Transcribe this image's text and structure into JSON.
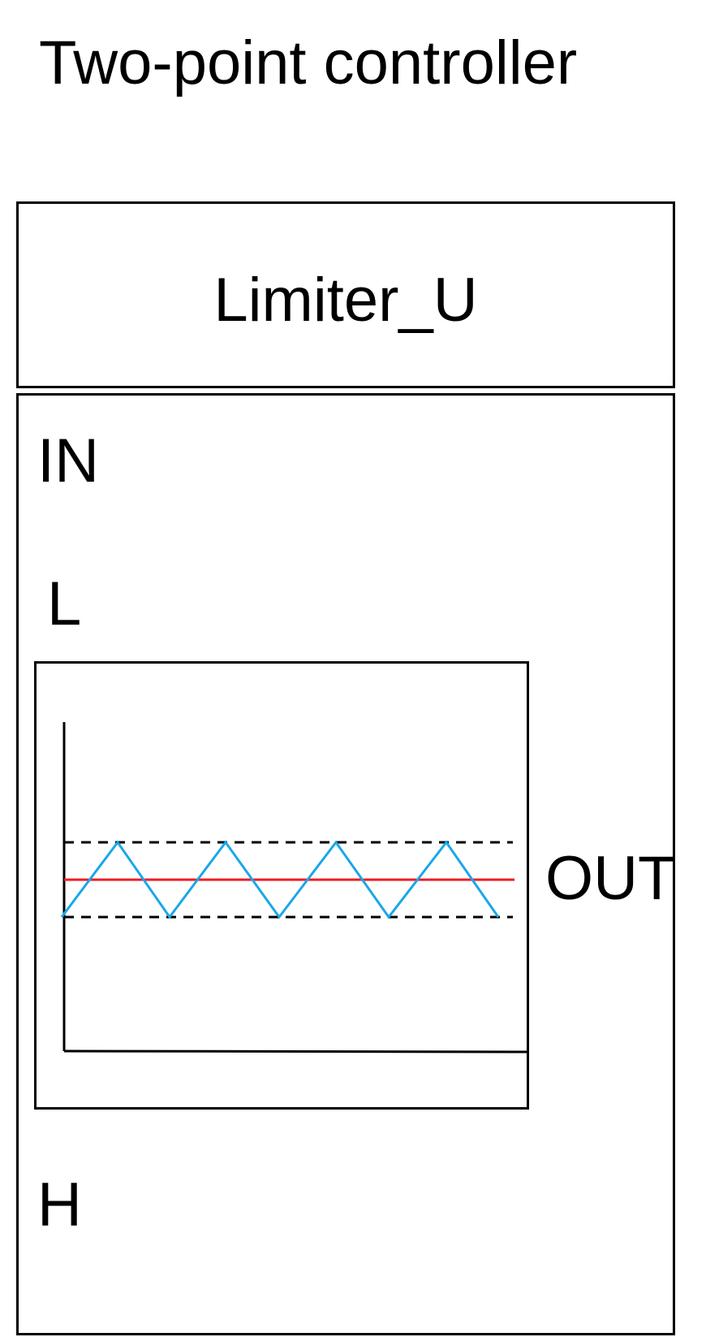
{
  "diagram": {
    "title": "Two-point controller",
    "block": {
      "name": "Limiter_U",
      "ports": {
        "in": "IN",
        "low": "L",
        "high": "H",
        "out": "OUT"
      }
    },
    "plot": {
      "setpoint_color": "#ee1c24",
      "signal_color": "#1aa7e8",
      "band_line_color": "#000000",
      "axis_color": "#000000",
      "band_style": "dashed",
      "signal_shape": "triangle-wave",
      "signal_peaks": 4
    }
  }
}
